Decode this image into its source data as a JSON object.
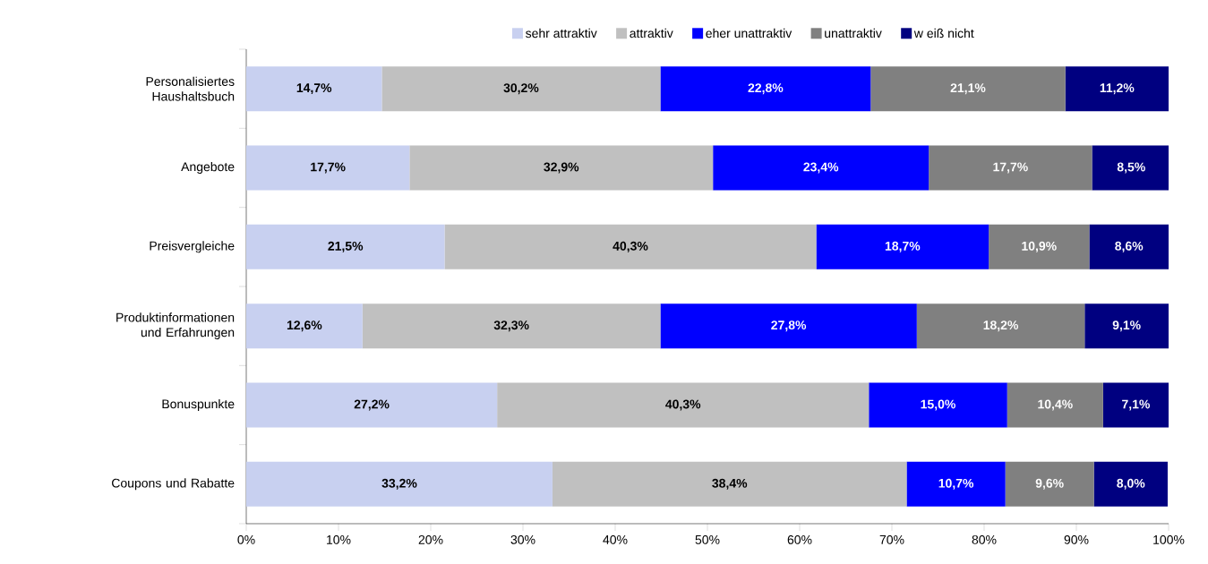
{
  "chart_data": {
    "type": "bar",
    "orientation": "horizontal",
    "stacked": true,
    "legend": "top",
    "categories": [
      "Personalisiertes Haushaltsbuch",
      "Angebote",
      "Preisvergleiche",
      "Produktinformationen und Erfahrungen",
      "Bonuspunkte",
      "Coupons und Rabatte"
    ],
    "xlim": [
      0,
      100
    ],
    "xticks": [
      {
        "value": 0,
        "label": "0%"
      },
      {
        "value": 10,
        "label": "10%"
      },
      {
        "value": 20,
        "label": "20%"
      },
      {
        "value": 30,
        "label": "30%"
      },
      {
        "value": 40,
        "label": "40%"
      },
      {
        "value": 50,
        "label": "50%"
      },
      {
        "value": 60,
        "label": "60%"
      },
      {
        "value": 70,
        "label": "70%"
      },
      {
        "value": 80,
        "label": "80%"
      },
      {
        "value": 90,
        "label": "90%"
      },
      {
        "value": 100,
        "label": "100%"
      }
    ],
    "series": [
      {
        "name": "sehr attraktiv",
        "color": "#c8d0f0",
        "values": [
          14.7,
          17.7,
          21.5,
          12.6,
          27.2,
          33.2
        ],
        "value_labels": [
          "14,7%",
          "17,7%",
          "21,5%",
          "12,6%",
          "27,2%",
          "33,2%"
        ]
      },
      {
        "name": "attraktiv",
        "color": "#c0c0c0",
        "values": [
          30.2,
          32.9,
          40.3,
          32.3,
          40.3,
          38.4
        ],
        "value_labels": [
          "30,2%",
          "32,9%",
          "40,3%",
          "32,3%",
          "40,3%",
          "38,4%"
        ]
      },
      {
        "name": "eher unattraktiv",
        "color": "#0000ff",
        "values": [
          22.8,
          23.4,
          18.7,
          27.8,
          15.0,
          10.7
        ],
        "value_labels": [
          "22,8%",
          "23,4%",
          "18,7%",
          "27,8%",
          "15,0%",
          "10,7%"
        ]
      },
      {
        "name": "unattraktiv",
        "color": "#808080",
        "values": [
          21.1,
          17.7,
          10.9,
          18.2,
          10.4,
          9.6
        ],
        "value_labels": [
          "21,1%",
          "17,7%",
          "10,9%",
          "18,2%",
          "10,4%",
          "9,6%"
        ]
      },
      {
        "name": "w eiß nicht",
        "color": "#000080",
        "values": [
          11.2,
          8.5,
          8.6,
          9.1,
          7.1,
          8.0
        ],
        "value_labels": [
          "11,2%",
          "8,5%",
          "8,6%",
          "9,1%",
          "7,1%",
          "8,0%"
        ]
      }
    ]
  }
}
